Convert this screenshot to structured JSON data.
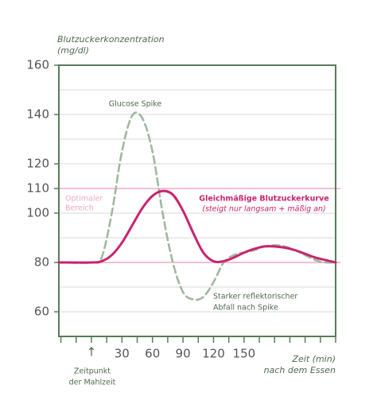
{
  "chart_data": {
    "type": "line",
    "y_label": [
      "Blutzuckerkonzentration",
      "(mg/dl)"
    ],
    "x_label": [
      "Zeit (min)",
      "nach dem Essen"
    ],
    "meal_label": [
      "Zeitpunkt",
      "der Mahlzeit"
    ],
    "optimal_label": [
      "Optimaler",
      "Bereich"
    ],
    "optimal_range": [
      80,
      110
    ],
    "optimal_color": "#f0a8c8",
    "spike_label": "Glucose Spike",
    "smooth_label": [
      "Gleichmäßige Blutzuckerkurve",
      "(steigt nur langsam + mäßig an)"
    ],
    "drop_label": [
      "Starker reflektorischer",
      "Abfall nach Spike"
    ],
    "xlim": [
      -32,
      240
    ],
    "ylim": [
      50,
      160
    ],
    "xticks": [
      {
        "value": 0,
        "label": "↑"
      },
      30,
      60,
      90,
      120,
      150
    ],
    "xminor": [
      -30,
      -15,
      15,
      45,
      75,
      105,
      135,
      165,
      180,
      195,
      210,
      225,
      240
    ],
    "yticks": [
      60,
      80,
      100,
      110,
      120,
      140,
      160
    ],
    "ygrid": [
      60,
      70,
      90,
      100,
      120,
      130,
      140,
      150
    ],
    "grid": true,
    "x": [
      -32,
      0,
      10,
      20,
      30,
      40,
      50,
      60,
      70,
      80,
      90,
      100,
      110,
      120,
      130,
      140,
      150,
      160,
      170,
      180,
      190,
      200,
      210,
      220,
      230,
      240
    ],
    "series": [
      {
        "name": "Glucose Spike",
        "color": "#9fb89f",
        "dashed": true,
        "values": [
          80,
          80,
          82,
          100,
          125,
          139.5,
          138.5,
          125,
          100,
          80,
          68,
          65,
          66,
          72,
          80,
          83,
          84,
          85,
          86.5,
          87,
          86.5,
          85,
          83,
          81,
          80,
          80
        ]
      },
      {
        "name": "Gleichmäßige Blutzuckerkurve",
        "color": "#c8246f",
        "dashed": false,
        "values": [
          80,
          80,
          80.5,
          83,
          88,
          95,
          102,
          107,
          109,
          107.5,
          101,
          92,
          84,
          80.5,
          80.5,
          82,
          84,
          85.5,
          86.5,
          86.5,
          86,
          85,
          83.5,
          82,
          81,
          80
        ]
      }
    ]
  }
}
